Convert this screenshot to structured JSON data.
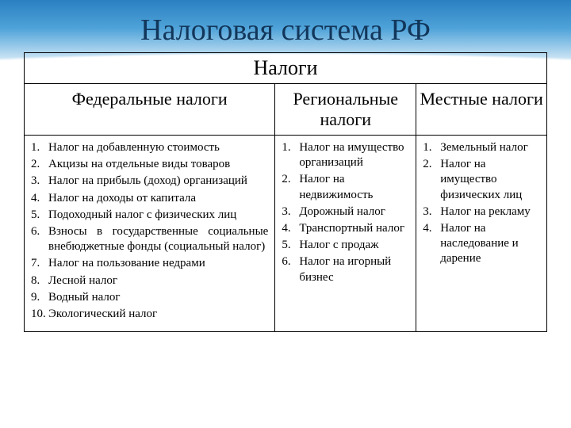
{
  "slide": {
    "title": "Налоговая система РФ",
    "subtitle": "Налоги"
  },
  "columns": {
    "federal": {
      "header": "Федеральные налоги"
    },
    "regional": {
      "header": "Региональные налоги"
    },
    "local": {
      "header": "Местные налоги"
    }
  },
  "federal_items": [
    "Налог на добавленную стоимость",
    "Акцизы на отдельные виды товаров",
    "Налог на прибыль (доход) организаций",
    "Налог на доходы от капитала",
    "Подоходный налог с физических лиц",
    "Взносы в государственные социальные внебюджетные фонды (социальный налог)",
    "Налог на пользование недрами",
    "Лесной налог",
    "Водный налог",
    "Экологический налог"
  ],
  "regional_items": [
    "Налог на имущество организаций",
    "Налог на недвижимость",
    "Дорожный налог",
    "Транспортный налог",
    "Налог с продаж",
    "Налог на игорный бизнес"
  ],
  "local_items": [
    "Земельный налог",
    "Налог на имущество физических лиц",
    "Налог на рекламу",
    "Налог на наследование и дарение"
  ],
  "style": {
    "title_color": "#12365a",
    "gradient_top": "#2a7fc1",
    "gradient_mid": "#4fa3d9",
    "background": "#ffffff",
    "border_color": "#000000",
    "title_fontsize": 38,
    "subtitle_fontsize": 26,
    "header_fontsize": 22,
    "body_fontsize": 15,
    "col_widths_pct": [
      48,
      27,
      25
    ]
  }
}
